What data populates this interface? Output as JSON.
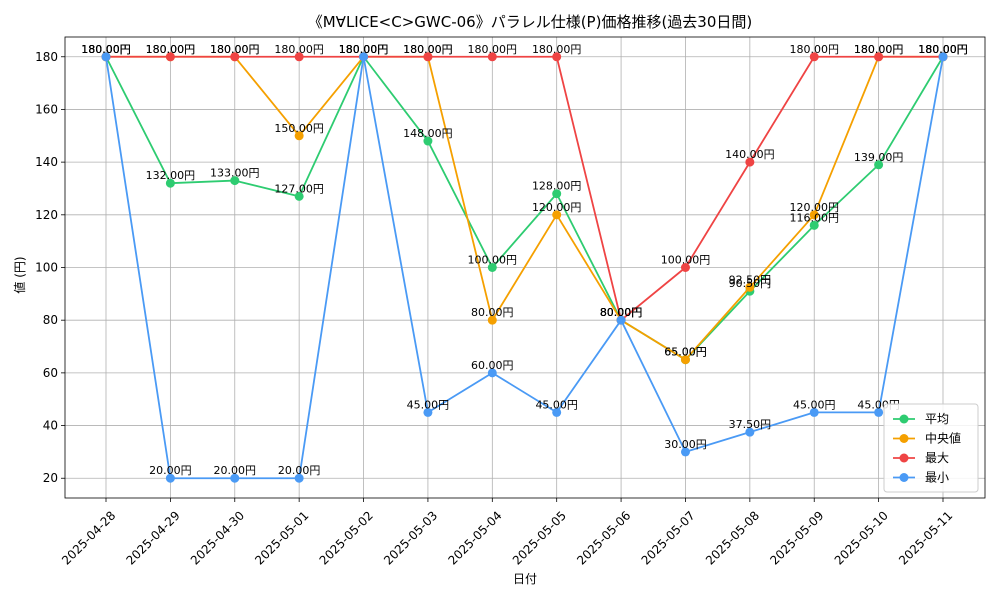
{
  "chart_data": {
    "type": "line",
    "title": "《M∀LICE<C>GWC-06》パラレル仕様(P)価格推移(過去30日間)",
    "xlabel": "日付",
    "ylabel": "値 (円)",
    "x": [
      "2025-04-28",
      "2025-04-29",
      "2025-04-30",
      "2025-05-01",
      "2025-05-02",
      "2025-05-03",
      "2025-05-04",
      "2025-05-05",
      "2025-05-06",
      "2025-05-07",
      "2025-05-08",
      "2025-05-09",
      "2025-05-10",
      "2025-05-11"
    ],
    "yticks": [
      20,
      40,
      60,
      80,
      100,
      120,
      140,
      160,
      180
    ],
    "ylim": [
      12.5,
      187.5
    ],
    "grid": true,
    "legend_position": "bottom-right",
    "label_suffix": "円",
    "series": [
      {
        "name": "平均",
        "color": "#2ecc71",
        "values": [
          180,
          132,
          133,
          127,
          180,
          148,
          100,
          128,
          80,
          65,
          91,
          116,
          139,
          180
        ],
        "labels": [
          "180.00円",
          "132.00円",
          "133.00円",
          "127.00円",
          "180.00円",
          "148.00円",
          "100.00円",
          "128.00円",
          "80.00円",
          "65.00円",
          "90.50円",
          "116.00円",
          "139.00円",
          "180.00円"
        ]
      },
      {
        "name": "中央値",
        "color": "#f5a000",
        "values": [
          180,
          180,
          180,
          150,
          180,
          180,
          80,
          120,
          80,
          65,
          92.5,
          120,
          180,
          180
        ],
        "labels": [
          "180.00円",
          "180.00円",
          "180.00円",
          "150.00円",
          "180.00円",
          "180.00円",
          "80.00円",
          "120.00円",
          "80.00円",
          "65.00円",
          "92.50円",
          "120.00円",
          "180.00円",
          "180.00円"
        ]
      },
      {
        "name": "最大",
        "color": "#ef4444",
        "values": [
          180,
          180,
          180,
          180,
          180,
          180,
          180,
          180,
          80,
          100,
          140,
          180,
          180,
          180
        ],
        "labels": [
          "180.00円",
          "180.00円",
          "180.00円",
          "180.00円",
          "180.00円",
          "180.00円",
          "180.00円",
          "180.00円",
          "80.00円",
          "100.00円",
          "140.00円",
          "180.00円",
          "180.00円",
          "180.00円"
        ]
      },
      {
        "name": "最小",
        "color": "#4a9af5",
        "values": [
          180,
          20,
          20,
          20,
          180,
          45,
          60,
          45,
          80,
          30,
          37.5,
          45,
          45,
          180
        ],
        "labels": [
          "180.00円",
          "20.00円",
          "20.00円",
          "20.00円",
          "180.00円",
          "45.00円",
          "60.00円",
          "45.00円",
          "80.00円",
          "30.00円",
          "37.50円",
          "45.00円",
          "45.00円",
          "180.00円"
        ]
      }
    ]
  }
}
